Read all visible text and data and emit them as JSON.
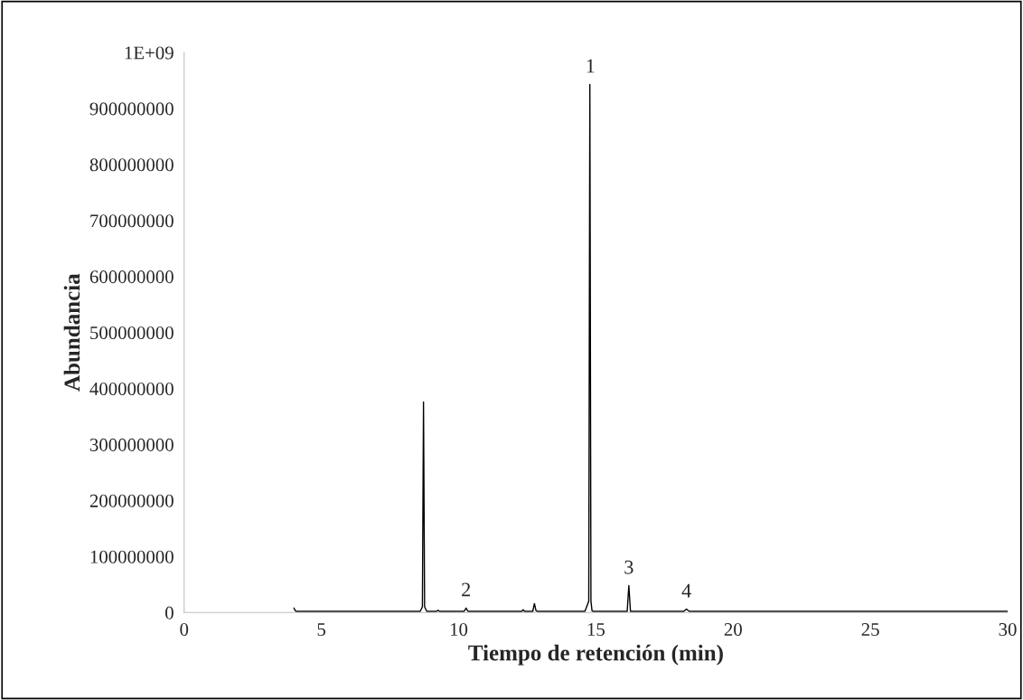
{
  "chart_data": {
    "type": "line",
    "xlabel": "Tiempo de retención (min)",
    "ylabel": "Abundancia",
    "xlim": [
      0,
      30
    ],
    "xticks": [
      0,
      5,
      10,
      15,
      20,
      25,
      30
    ],
    "ylim": [
      0,
      1000000000
    ],
    "yticks": [
      0,
      100000000,
      200000000,
      300000000,
      400000000,
      500000000,
      600000000,
      700000000,
      800000000,
      900000000,
      {
        "value": 1000000000,
        "label": "1E+09"
      }
    ],
    "grid": false,
    "marker": "none",
    "line_style": "solid",
    "series": [
      {
        "color": "#000000",
        "x": [
          4.0,
          4.05,
          4.1,
          5.0,
          6.0,
          7.0,
          8.0,
          8.6,
          8.68,
          8.72,
          8.76,
          8.84,
          9.0,
          9.2,
          9.25,
          9.3,
          10.0,
          10.2,
          10.27,
          10.34,
          11.0,
          12.0,
          12.3,
          12.35,
          12.4,
          12.7,
          12.76,
          12.82,
          12.88,
          13.5,
          14.0,
          14.6,
          14.74,
          14.78,
          14.82,
          14.86,
          14.9,
          15.2,
          15.6,
          16.0,
          16.14,
          16.2,
          16.26,
          16.4,
          17.5,
          18.2,
          18.3,
          18.4,
          19.0,
          20.0,
          22.0,
          24.0,
          26.0,
          28.0,
          30.0
        ],
        "values": [
          8000000,
          3000000,
          2000000,
          2000000,
          2000000,
          2000000,
          2000000,
          2000000,
          10000000,
          376000000,
          10000000,
          2000000,
          2000000,
          2000000,
          4000000,
          2000000,
          2000000,
          2000000,
          8000000,
          2000000,
          2000000,
          2000000,
          2000000,
          5000000,
          2000000,
          2000000,
          16000000,
          3000000,
          2000000,
          2000000,
          2000000,
          2000000,
          20000000,
          943000000,
          20000000,
          3000000,
          2000000,
          2000000,
          2000000,
          2000000,
          2000000,
          48000000,
          2000000,
          2000000,
          2000000,
          2000000,
          6000000,
          2000000,
          2000000,
          2000000,
          2000000,
          2000000,
          2000000,
          2000000,
          2000000
        ]
      }
    ],
    "annotations": [
      {
        "text": "1",
        "x": 14.8,
        "y": 943000000
      },
      {
        "text": "2",
        "x": 10.27,
        "y": 8000000
      },
      {
        "text": "3",
        "x": 16.2,
        "y": 48000000
      },
      {
        "text": "4",
        "x": 18.3,
        "y": 6000000
      }
    ]
  }
}
